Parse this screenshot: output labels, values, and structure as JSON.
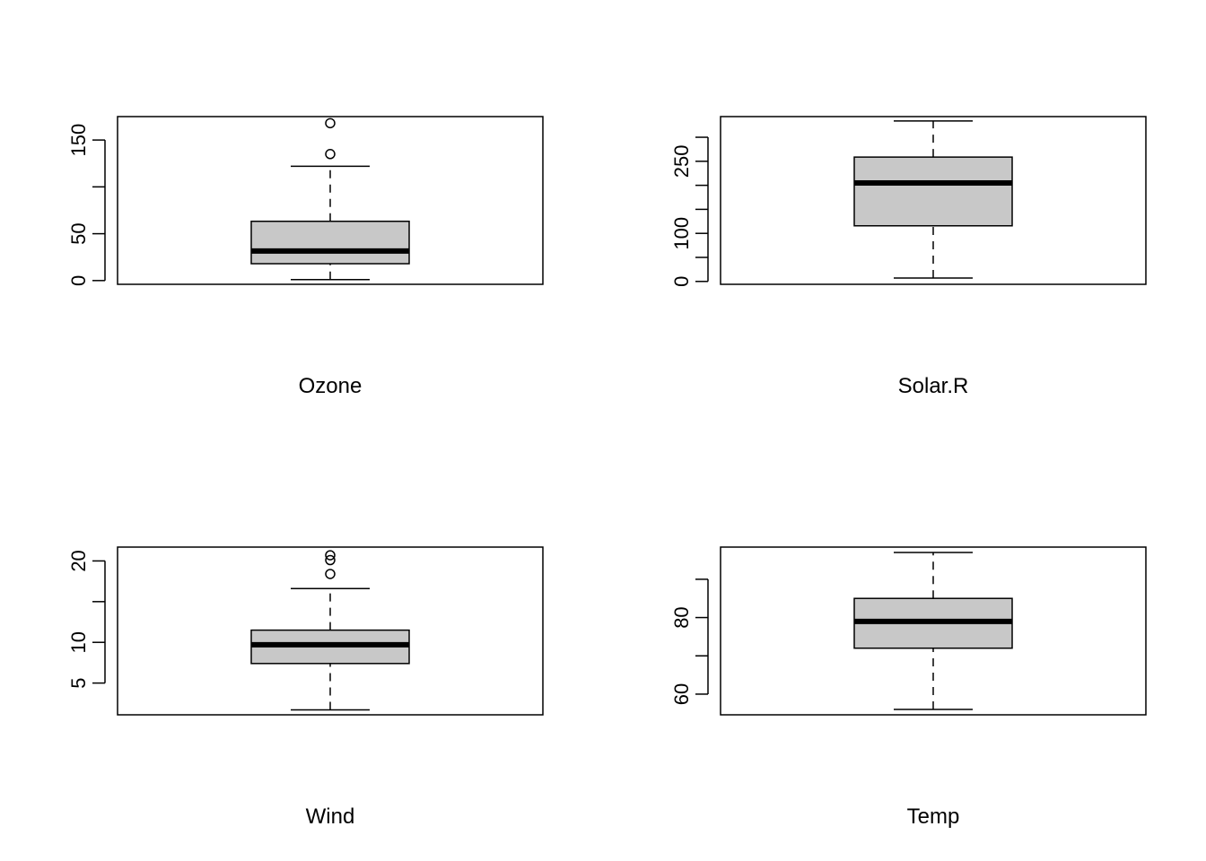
{
  "chart_data": [
    {
      "type": "boxplot",
      "xlabel": "Ozone",
      "ylim": [
        -4,
        175
      ],
      "yticks": [
        0,
        50,
        100,
        150
      ],
      "ytick_labels": [
        "0",
        "50",
        "",
        "150"
      ],
      "box": {
        "whisker_low": 1,
        "q1": 18,
        "median": 31.5,
        "q3": 63.25,
        "whisker_high": 122
      },
      "outliers": [
        135,
        168
      ],
      "fill": "#c8c8c8"
    },
    {
      "type": "boxplot",
      "xlabel": "Solar.R",
      "ylim": [
        -6,
        343
      ],
      "yticks": [
        0,
        50,
        100,
        150,
        200,
        250,
        300
      ],
      "ytick_labels": [
        "0",
        "",
        "100",
        "",
        "",
        "250",
        ""
      ],
      "box": {
        "whisker_low": 7,
        "q1": 115.75,
        "median": 205,
        "q3": 258.75,
        "whisker_high": 334
      },
      "outliers": [],
      "fill": "#c8c8c8"
    },
    {
      "type": "boxplot",
      "xlabel": "Wind",
      "ylim": [
        1.1,
        21.7
      ],
      "yticks": [
        5,
        10,
        15,
        20
      ],
      "ytick_labels": [
        "5",
        "10",
        "",
        "20"
      ],
      "box": {
        "whisker_low": 1.7,
        "q1": 7.4,
        "median": 9.7,
        "q3": 11.5,
        "whisker_high": 16.6
      },
      "outliers": [
        18.4,
        20.1,
        20.7
      ],
      "fill": "#c8c8c8"
    },
    {
      "type": "boxplot",
      "xlabel": "Temp",
      "ylim": [
        54.6,
        98.4
      ],
      "yticks": [
        60,
        70,
        80,
        90
      ],
      "ytick_labels": [
        "60",
        "",
        "80",
        ""
      ],
      "box": {
        "whisker_low": 56,
        "q1": 72,
        "median": 79,
        "q3": 85,
        "whisker_high": 97
      },
      "outliers": [],
      "fill": "#c8c8c8"
    }
  ]
}
